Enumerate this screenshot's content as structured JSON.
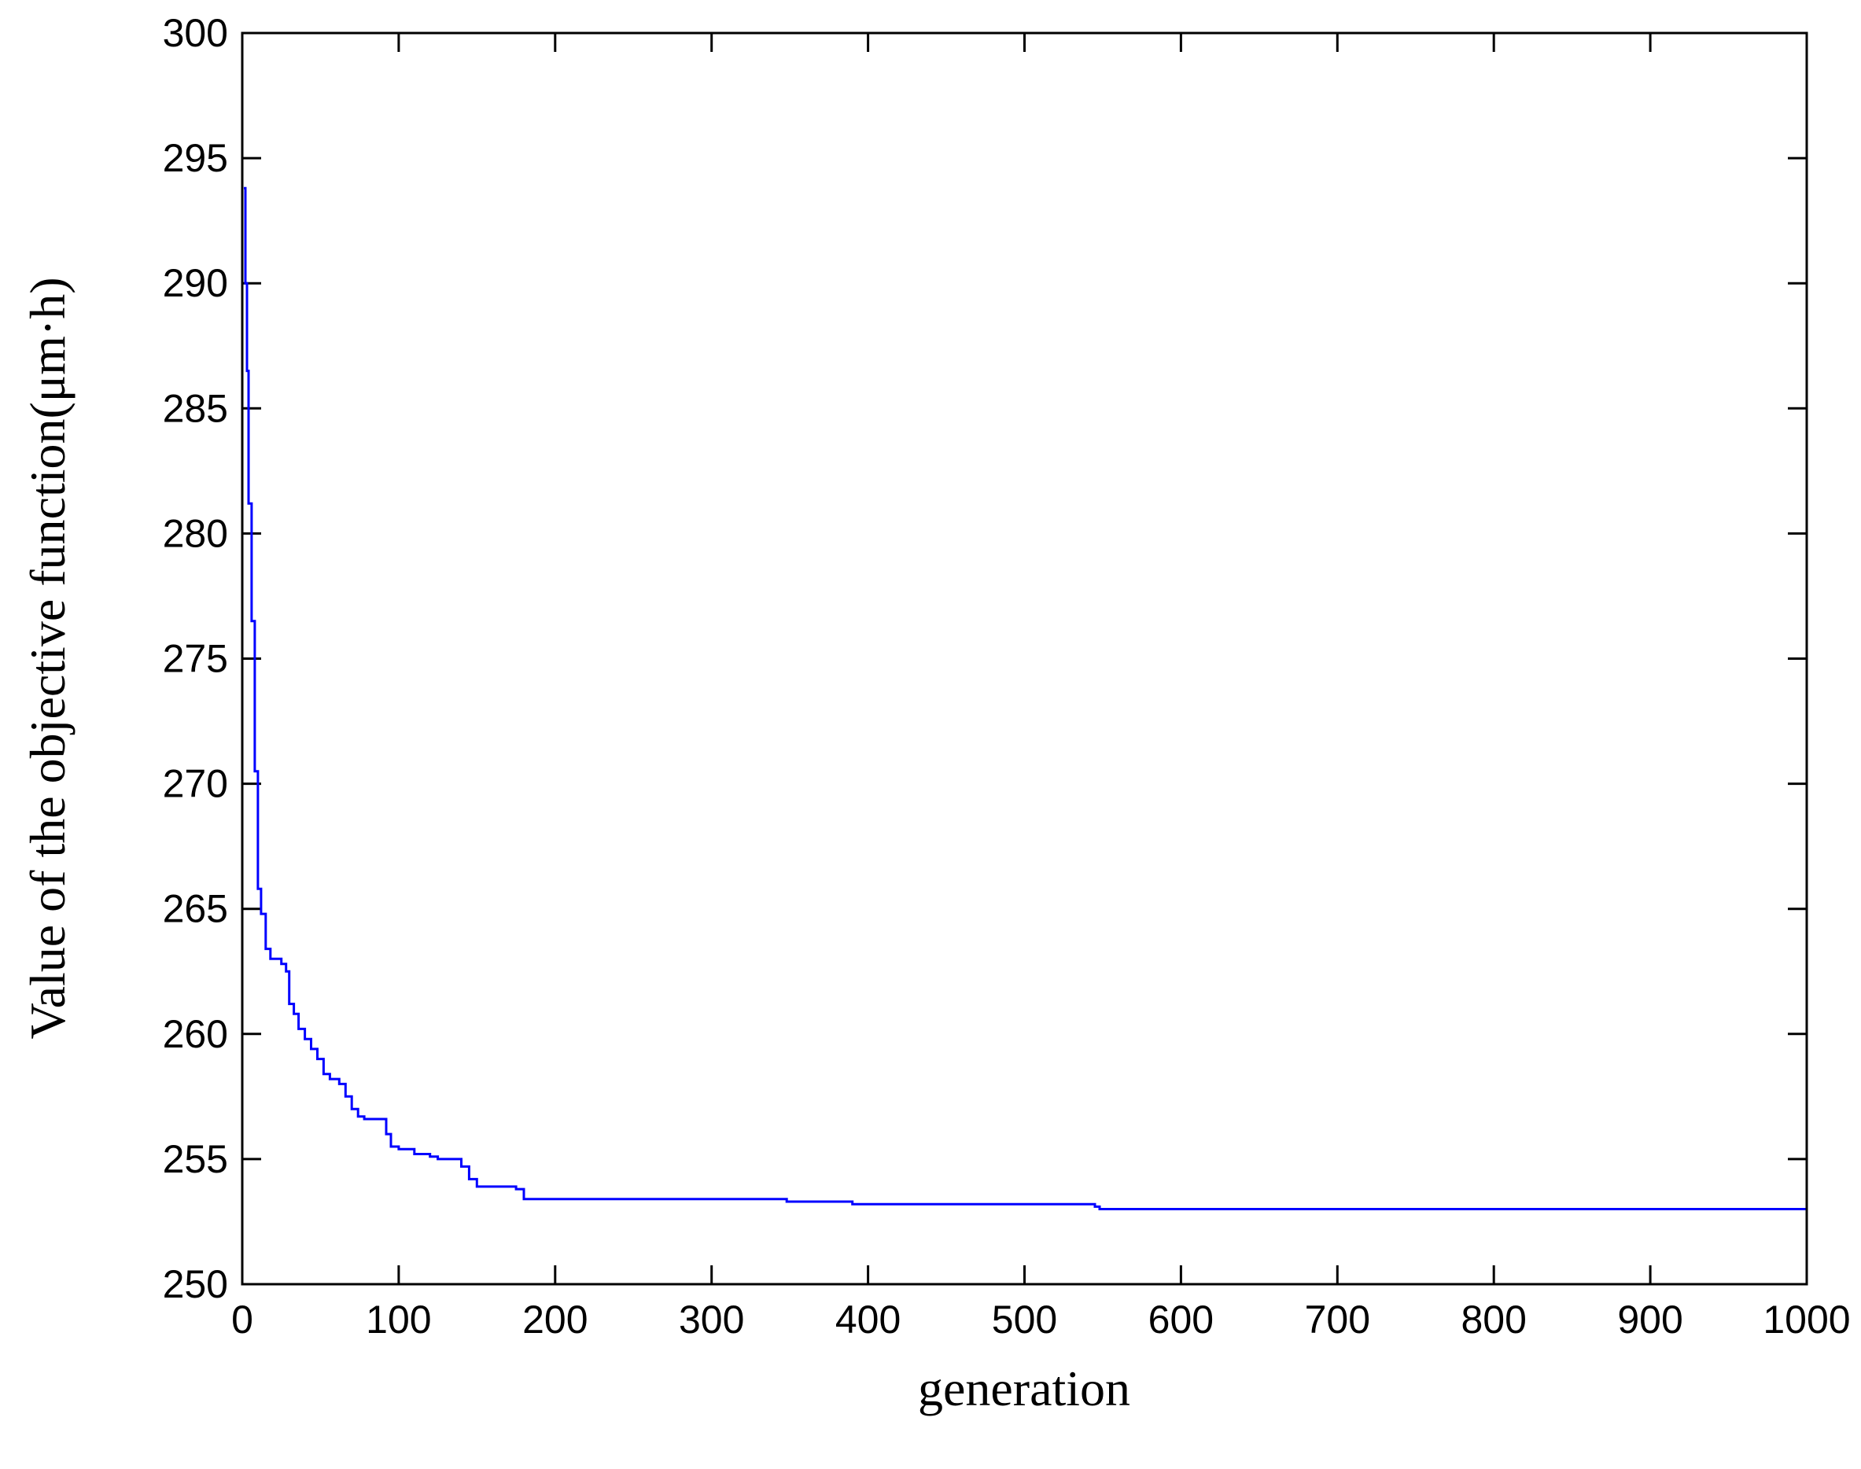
{
  "chart_data": {
    "type": "line",
    "title": "",
    "xlabel": "generation",
    "ylabel": "Value of the objective function(μm·h)",
    "xlim": [
      0,
      1000
    ],
    "ylim": [
      250,
      300
    ],
    "xticks": [
      "0",
      "100",
      "200",
      "300",
      "400",
      "500",
      "600",
      "700",
      "800",
      "900",
      "1000"
    ],
    "yticks": [
      "250",
      "255",
      "260",
      "265",
      "270",
      "275",
      "280",
      "285",
      "290",
      "295",
      "300"
    ],
    "grid": false,
    "legend": "none",
    "step": true,
    "colors": {
      "line": "#0000ff",
      "axes": "#000000",
      "background": "#ffffff"
    },
    "series": [
      {
        "x": [
          1,
          2,
          3,
          4,
          6,
          8,
          10,
          12,
          15,
          18,
          25,
          28,
          30,
          33,
          36,
          40,
          44,
          48,
          52,
          56,
          62,
          66,
          70,
          74,
          78,
          90,
          92,
          95,
          100,
          110,
          120,
          125,
          140,
          145,
          150,
          175,
          180,
          345,
          348,
          390,
          395,
          545,
          548,
          1000
        ],
        "y": [
          293.8,
          290.0,
          286.5,
          281.2,
          276.5,
          270.5,
          265.8,
          264.8,
          263.4,
          263.0,
          262.8,
          262.5,
          261.2,
          260.8,
          260.2,
          259.8,
          259.4,
          259.0,
          258.4,
          258.2,
          258.0,
          257.5,
          257.0,
          256.7,
          256.6,
          256.6,
          256.0,
          255.5,
          255.4,
          255.2,
          255.1,
          255.0,
          254.7,
          254.2,
          253.9,
          253.8,
          253.4,
          253.4,
          253.3,
          253.2,
          253.2,
          253.1,
          253.0,
          253.0
        ]
      }
    ]
  }
}
